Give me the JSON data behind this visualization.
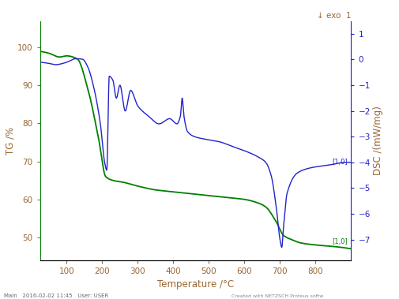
{
  "title_left": "TG /%",
  "title_right": "DSC /(mW/mg)",
  "xlabel": "Temperature /°C",
  "ylabel_right_note": "↓ exo",
  "xlim": [
    25,
    900
  ],
  "ylim_left": [
    44,
    107
  ],
  "ylim_right": [
    -7.8,
    1.5
  ],
  "yticks_left": [
    50,
    60,
    70,
    80,
    90,
    100
  ],
  "yticks_right": [
    -7,
    -6,
    -5,
    -4,
    -3,
    -2,
    -1,
    0,
    1
  ],
  "xticks": [
    100,
    200,
    300,
    400,
    500,
    600,
    700,
    800
  ],
  "tg_color": "#008000",
  "dsc_color": "#2222CC",
  "background_color": "#ffffff",
  "label_color": "#996633",
  "axis_left_color": "#008000",
  "axis_right_color": "#2222CC",
  "footnote": "Main   2016-02-02 11:45   User: USER",
  "watermark": "Created with NETZSCH Proteus softw",
  "cursor_label_dsc": "[1,0]",
  "cursor_label_tg": "[1,0]"
}
